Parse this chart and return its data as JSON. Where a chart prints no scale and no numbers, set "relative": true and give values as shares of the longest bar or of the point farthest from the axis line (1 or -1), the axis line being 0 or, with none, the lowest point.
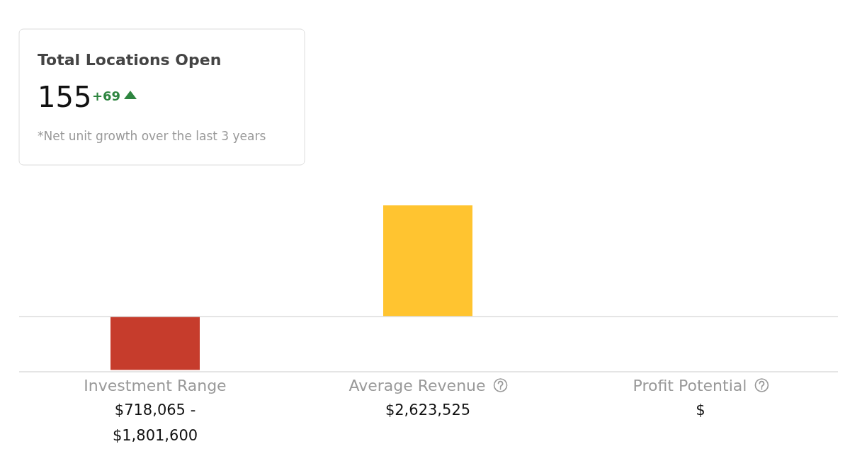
{
  "chart_data": [
    {
      "type": "other",
      "title": "Total Locations Open",
      "annotations": [
        "155",
        "+69",
        "*Net unit growth over the last 3 years"
      ]
    },
    {
      "type": "bar",
      "relative": true,
      "categories": [
        "Investment Range",
        "Average Revenue",
        "Profit Potential"
      ],
      "values": [
        -0.48,
        1,
        null
      ],
      "colors": [
        "#c63c2c",
        "#ffc430",
        null
      ],
      "annotations": [
        "$718,065 - $1,801,600",
        "$2,623,525",
        "$"
      ]
    }
  ]
}
